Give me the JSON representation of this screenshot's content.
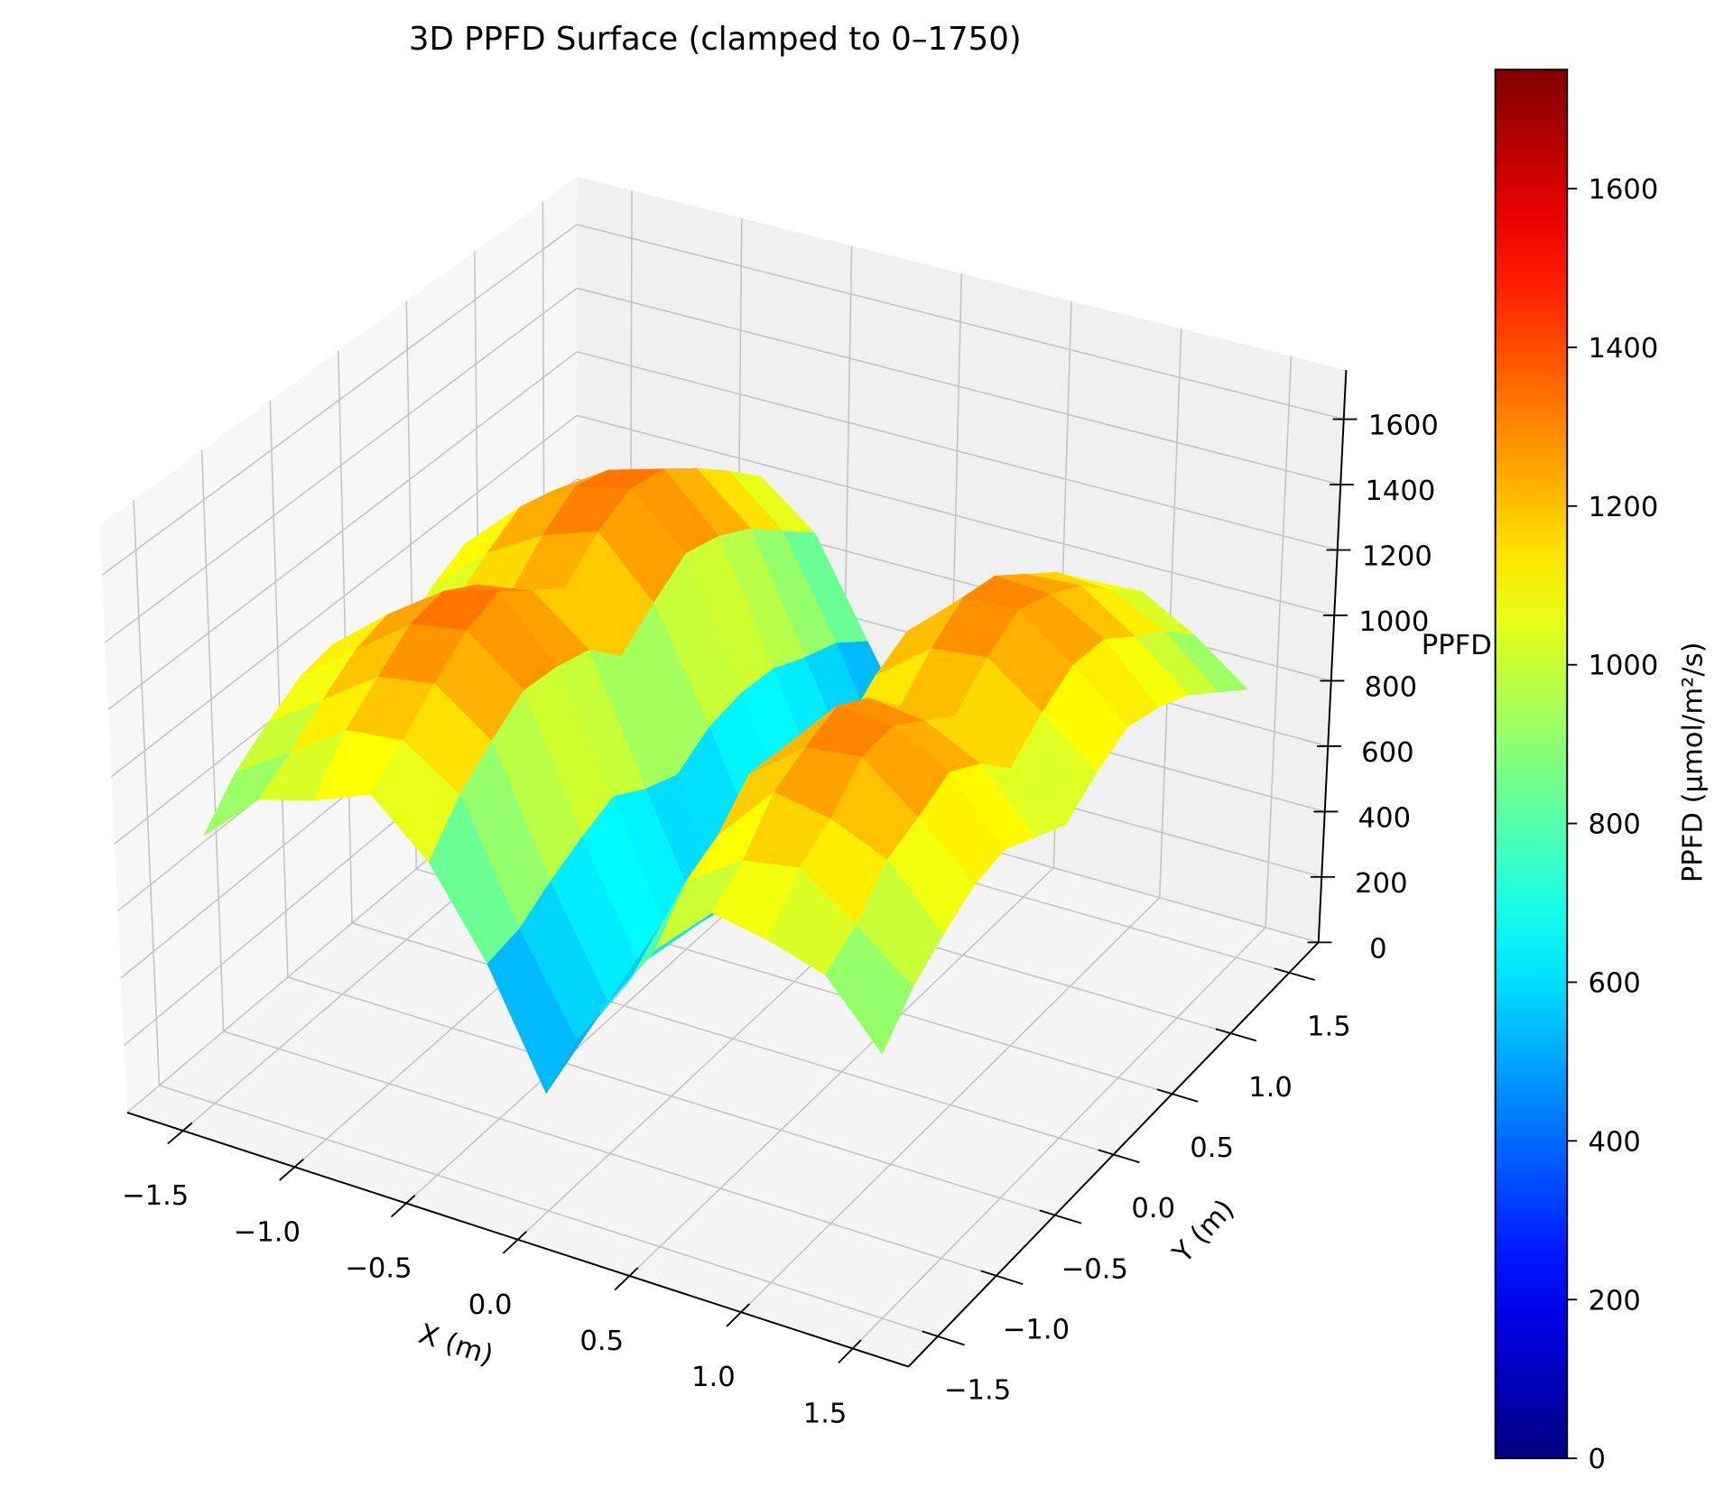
{
  "chart_data": {
    "type": "surface",
    "title": "3D PPFD Surface (clamped to 0–1750)",
    "xlabel": "X (m)",
    "ylabel": "Y (m)",
    "zlabel": "PPFD",
    "colormap": "jet",
    "zlim": [
      0,
      1750
    ],
    "xlim": [
      -1.75,
      1.75
    ],
    "ylim": [
      -1.75,
      1.75
    ],
    "grid": true,
    "x_ticks": [
      "−1.5",
      "−1.0",
      "−0.5",
      "0.0",
      "0.5",
      "1.0",
      "1.5"
    ],
    "x_tick_values": [
      -1.5,
      -1.0,
      -0.5,
      0.0,
      0.5,
      1.0,
      1.5
    ],
    "y_ticks": [
      "−1.5",
      "−1.0",
      "−0.5",
      "0.0",
      "0.5",
      "1.0",
      "1.5"
    ],
    "y_tick_values": [
      -1.5,
      -1.0,
      -0.5,
      0.0,
      0.5,
      1.0,
      1.5
    ],
    "z_ticks": [
      "0",
      "200",
      "400",
      "600",
      "800",
      "1000",
      "1200",
      "1400",
      "1600"
    ],
    "z_tick_values": [
      0,
      200,
      400,
      600,
      800,
      1000,
      1200,
      1400,
      1600
    ],
    "x": [
      -1.5,
      -1.25,
      -1.0,
      -0.75,
      -0.5,
      -0.25,
      0.0,
      0.25,
      0.5,
      0.75,
      1.0,
      1.25,
      1.5
    ],
    "y": [
      -1.5,
      -1.25,
      -1.0,
      -0.75,
      -0.5,
      -0.25,
      0.0,
      0.25,
      0.5,
      0.75,
      1.0,
      1.25,
      1.5
    ],
    "z": [
      [
        800,
        960,
        1010,
        1080,
        930,
        680,
        350,
        640,
        880,
        1040,
        1010,
        960,
        780
      ],
      [
        910,
        1020,
        1140,
        1160,
        1050,
        700,
        420,
        660,
        1000,
        1110,
        1140,
        1020,
        890
      ],
      [
        980,
        1100,
        1220,
        1250,
        1130,
        760,
        450,
        740,
        1050,
        1230,
        1200,
        1130,
        960
      ],
      [
        1040,
        1170,
        1300,
        1330,
        1200,
        810,
        480,
        760,
        1150,
        1280,
        1300,
        1170,
        1020
      ],
      [
        1060,
        1200,
        1320,
        1370,
        1190,
        850,
        460,
        800,
        1140,
        1320,
        1310,
        1220,
        1040
      ],
      [
        1010,
        1140,
        1260,
        1290,
        1160,
        790,
        440,
        760,
        1090,
        1260,
        1240,
        1160,
        990
      ],
      [
        920,
        1080,
        1150,
        1220,
        1060,
        750,
        410,
        700,
        1030,
        1150,
        1170,
        1060,
        940
      ],
      [
        1000,
        1150,
        1250,
        1310,
        1140,
        810,
        450,
        740,
        1110,
        1240,
        1260,
        1140,
        1010
      ],
      [
        1050,
        1210,
        1320,
        1360,
        1210,
        830,
        470,
        790,
        1160,
        1310,
        1320,
        1200,
        1060
      ],
      [
        1030,
        1180,
        1290,
        1340,
        1180,
        820,
        470,
        780,
        1130,
        1290,
        1280,
        1190,
        1030
      ],
      [
        970,
        1120,
        1210,
        1260,
        1120,
        770,
        440,
        730,
        1070,
        1210,
        1220,
        1110,
        980
      ],
      [
        900,
        1040,
        1120,
        1170,
        1030,
        730,
        400,
        680,
        990,
        1130,
        1120,
        1040,
        900
      ],
      [
        820,
        940,
        1020,
        1070,
        940,
        650,
        370,
        610,
        900,
        1020,
        1030,
        940,
        820
      ]
    ],
    "colorbar": {
      "label": "PPFD (µmol/m²/s)",
      "range": [
        0,
        1750
      ],
      "ticks": [
        "0",
        "200",
        "400",
        "600",
        "800",
        "1000",
        "1200",
        "1400",
        "1600"
      ],
      "tick_values": [
        0,
        200,
        400,
        600,
        800,
        1000,
        1200,
        1400,
        1600
      ]
    }
  }
}
